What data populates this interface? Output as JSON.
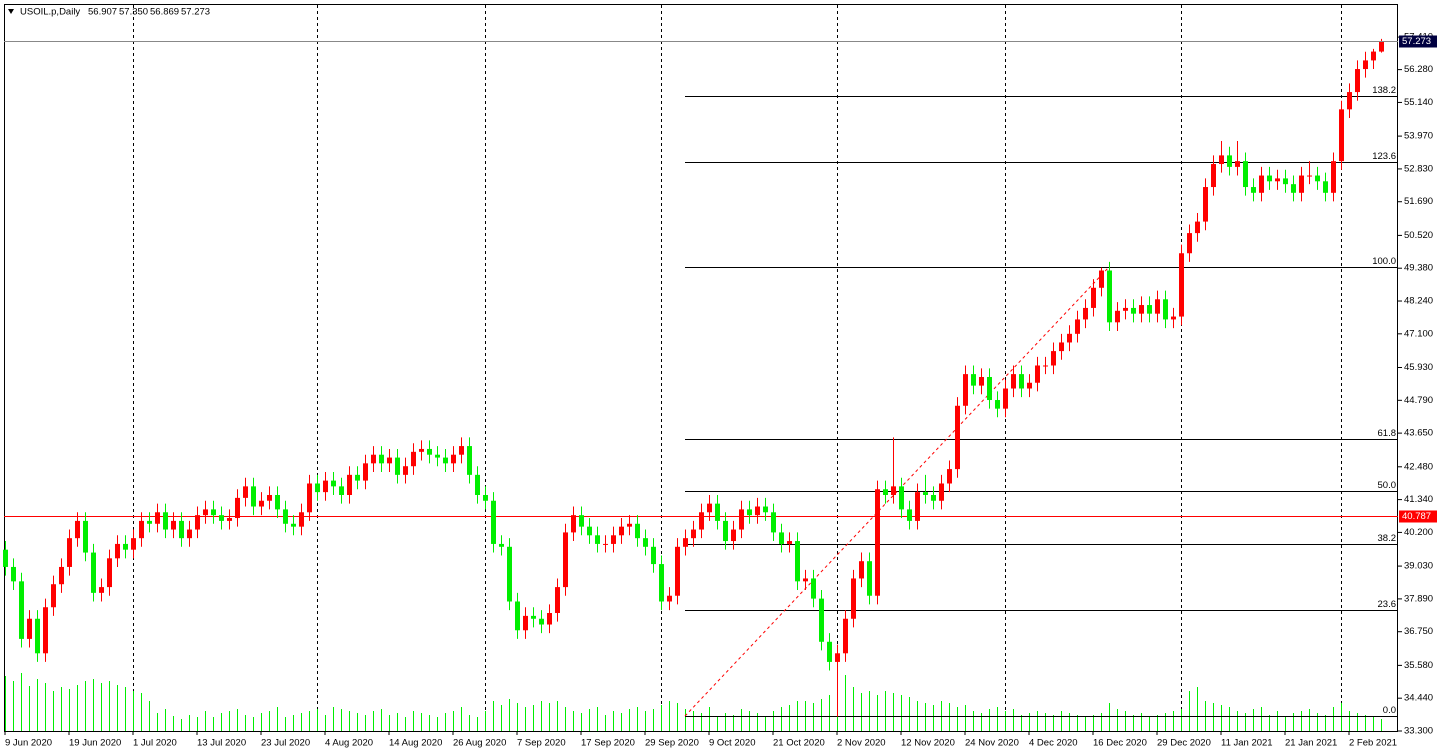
{
  "chart_data": {
    "type": "candlestick",
    "title": "USOIL.p,Daily",
    "ohlc_labels": [
      "56.907",
      "57.350",
      "56.869",
      "57.273"
    ],
    "up_color": "#ff0000",
    "down_color": "#00ee00",
    "volume_color": "#00ee00",
    "ylim": [
      33.3,
      58.56
    ],
    "yticks": [
      {
        "value": 57.41,
        "label": "57.410"
      },
      {
        "value": 56.28,
        "label": "56.280"
      },
      {
        "value": 55.14,
        "label": "55.140"
      },
      {
        "value": 53.97,
        "label": "53.970"
      },
      {
        "value": 52.83,
        "label": "52.830"
      },
      {
        "value": 51.69,
        "label": "51.690"
      },
      {
        "value": 50.52,
        "label": "50.520"
      },
      {
        "value": 49.38,
        "label": "49.380"
      },
      {
        "value": 48.24,
        "label": "48.240"
      },
      {
        "value": 47.1,
        "label": "47.100"
      },
      {
        "value": 45.93,
        "label": "45.930"
      },
      {
        "value": 44.79,
        "label": "44.790"
      },
      {
        "value": 43.65,
        "label": "43.650"
      },
      {
        "value": 42.48,
        "label": "42.480"
      },
      {
        "value": 41.34,
        "label": "41.340"
      },
      {
        "value": 40.2,
        "label": "40.200"
      },
      {
        "value": 39.03,
        "label": "39.030"
      },
      {
        "value": 37.89,
        "label": "37.890"
      },
      {
        "value": 36.75,
        "label": "36.750"
      },
      {
        "value": 35.58,
        "label": "35.580"
      },
      {
        "value": 34.44,
        "label": "34.440"
      },
      {
        "value": 33.3,
        "label": "33.300"
      }
    ],
    "hline": 40.787,
    "fibonacci": [
      {
        "label": "0.0",
        "price": 33.82
      },
      {
        "label": "23.6",
        "price": 37.5
      },
      {
        "label": "38.2",
        "price": 39.79
      },
      {
        "label": "50.0",
        "price": 41.63
      },
      {
        "label": "61.8",
        "price": 43.44
      },
      {
        "label": "100.0",
        "price": 49.42
      },
      {
        "label": "123.6",
        "price": 53.07
      },
      {
        "label": "138.2",
        "price": 55.36
      }
    ],
    "categories": [
      "9 Jun 2020",
      null,
      null,
      null,
      null,
      null,
      null,
      null,
      "19 Jun 2020",
      null,
      null,
      null,
      null,
      null,
      null,
      null,
      "1 Jul 2020",
      null,
      null,
      null,
      null,
      null,
      null,
      null,
      "13 Jul 2020",
      null,
      null,
      null,
      null,
      null,
      null,
      null,
      "23 Jul 2020",
      null,
      null,
      null,
      null,
      null,
      null,
      null,
      "4 Aug 2020",
      null,
      null,
      null,
      null,
      null,
      null,
      null,
      "14 Aug 2020",
      null,
      null,
      null,
      null,
      null,
      null,
      null,
      "26 Aug 2020",
      null,
      null,
      null,
      null,
      null,
      null,
      null,
      "7 Sep 2020",
      null,
      null,
      null,
      null,
      null,
      null,
      null,
      "17 Sep 2020",
      null,
      null,
      null,
      null,
      null,
      null,
      null,
      "29 Sep 2020",
      null,
      null,
      null,
      null,
      null,
      null,
      null,
      "9 Oct 2020",
      null,
      null,
      null,
      null,
      null,
      null,
      null,
      "21 Oct 2020",
      null,
      null,
      null,
      null,
      null,
      null,
      null,
      "2 Nov 2020",
      null,
      null,
      null,
      null,
      null,
      null,
      null,
      "12 Nov 2020",
      null,
      null,
      null,
      null,
      null,
      null,
      null,
      "24 Nov 2020",
      null,
      null,
      null,
      null,
      null,
      null,
      null,
      "4 Dec 2020",
      null,
      null,
      null,
      null,
      null,
      null,
      null,
      "16 Dec 2020",
      null,
      null,
      null,
      null,
      null,
      null,
      null,
      "29 Dec 2020",
      null,
      null,
      null,
      null,
      null,
      null,
      null,
      "11 Jan 2021",
      null,
      null,
      null,
      null,
      null,
      null,
      null,
      "21 Jan 2021",
      null,
      null,
      null,
      null,
      null,
      null,
      null,
      "2 Feb 2021",
      null,
      null,
      null,
      null
    ],
    "candles": [
      [
        39.6,
        39.9,
        38.7,
        39.0
      ],
      [
        39.0,
        39.3,
        38.2,
        38.5
      ],
      [
        38.5,
        38.8,
        36.2,
        36.5
      ],
      [
        36.5,
        37.5,
        36.2,
        37.2
      ],
      [
        37.2,
        37.5,
        35.7,
        36.0
      ],
      [
        36.0,
        37.9,
        35.7,
        37.6
      ],
      [
        37.6,
        38.7,
        37.3,
        38.4
      ],
      [
        38.4,
        39.3,
        38.1,
        39.0
      ],
      [
        39.0,
        40.3,
        38.7,
        40.0
      ],
      [
        40.0,
        40.9,
        39.7,
        40.6
      ],
      [
        40.6,
        40.9,
        39.2,
        39.5
      ],
      [
        39.5,
        39.8,
        37.8,
        38.1
      ],
      [
        38.1,
        38.6,
        37.8,
        38.3
      ],
      [
        38.3,
        39.6,
        38.0,
        39.3
      ],
      [
        39.3,
        40.1,
        39.0,
        39.8
      ],
      [
        39.8,
        40.1,
        39.3,
        39.6
      ],
      [
        39.6,
        40.3,
        39.3,
        40.0
      ],
      [
        40.0,
        40.9,
        39.7,
        40.6
      ],
      [
        40.6,
        40.9,
        40.2,
        40.5
      ],
      [
        40.5,
        41.2,
        40.2,
        40.9
      ],
      [
        40.9,
        41.2,
        40.0,
        40.3
      ],
      [
        40.3,
        40.9,
        40.0,
        40.6
      ],
      [
        40.6,
        40.9,
        39.7,
        40.0
      ],
      [
        40.0,
        40.6,
        39.7,
        40.3
      ],
      [
        40.3,
        41.1,
        40.0,
        40.8
      ],
      [
        40.8,
        41.3,
        40.5,
        41.0
      ],
      [
        41.0,
        41.3,
        40.5,
        40.8
      ],
      [
        40.8,
        41.1,
        40.3,
        40.6
      ],
      [
        40.6,
        41.0,
        40.3,
        40.7
      ],
      [
        40.7,
        41.7,
        40.4,
        41.4
      ],
      [
        41.4,
        42.1,
        41.1,
        41.8
      ],
      [
        41.8,
        42.1,
        40.8,
        41.1
      ],
      [
        41.1,
        41.6,
        40.8,
        41.3
      ],
      [
        41.3,
        41.8,
        41.0,
        41.5
      ],
      [
        41.5,
        41.8,
        40.7,
        41.0
      ],
      [
        41.0,
        41.3,
        40.2,
        40.5
      ],
      [
        40.5,
        40.8,
        40.1,
        40.4
      ],
      [
        40.4,
        41.2,
        40.1,
        40.9
      ],
      [
        40.9,
        42.2,
        40.6,
        41.9
      ],
      [
        41.9,
        42.2,
        41.3,
        41.6
      ],
      [
        41.6,
        42.3,
        41.3,
        42.0
      ],
      [
        42.0,
        42.3,
        41.5,
        41.8
      ],
      [
        41.8,
        42.1,
        41.2,
        41.5
      ],
      [
        41.5,
        42.5,
        41.2,
        42.2
      ],
      [
        42.2,
        42.5,
        41.7,
        42.0
      ],
      [
        42.0,
        42.9,
        41.7,
        42.6
      ],
      [
        42.6,
        43.2,
        42.3,
        42.9
      ],
      [
        42.9,
        43.2,
        42.3,
        42.6
      ],
      [
        42.6,
        43.1,
        42.3,
        42.8
      ],
      [
        42.8,
        43.1,
        41.9,
        42.2
      ],
      [
        42.2,
        42.8,
        41.9,
        42.5
      ],
      [
        42.5,
        43.3,
        42.2,
        43.0
      ],
      [
        43.0,
        43.4,
        42.7,
        43.1
      ],
      [
        43.1,
        43.4,
        42.6,
        42.9
      ],
      [
        42.9,
        43.2,
        42.5,
        42.8
      ],
      [
        42.8,
        43.1,
        42.3,
        42.6
      ],
      [
        42.6,
        43.2,
        42.3,
        42.9
      ],
      [
        42.9,
        43.5,
        42.6,
        43.2
      ],
      [
        43.2,
        43.5,
        41.9,
        42.2
      ],
      [
        42.2,
        42.5,
        41.2,
        41.5
      ],
      [
        41.5,
        41.8,
        41.0,
        41.3
      ],
      [
        41.3,
        41.6,
        39.5,
        39.8
      ],
      [
        39.8,
        40.1,
        39.4,
        39.7
      ],
      [
        39.7,
        40.0,
        37.5,
        37.8
      ],
      [
        37.8,
        38.1,
        36.5,
        36.8
      ],
      [
        36.8,
        37.6,
        36.5,
        37.3
      ],
      [
        37.3,
        37.6,
        36.9,
        37.2
      ],
      [
        37.2,
        37.5,
        36.7,
        37.0
      ],
      [
        37.0,
        37.7,
        36.7,
        37.4
      ],
      [
        37.4,
        38.6,
        37.1,
        38.3
      ],
      [
        38.3,
        40.5,
        38.0,
        40.2
      ],
      [
        40.2,
        41.1,
        39.9,
        40.8
      ],
      [
        40.8,
        41.1,
        40.1,
        40.4
      ],
      [
        40.4,
        40.7,
        39.8,
        40.1
      ],
      [
        40.1,
        40.4,
        39.5,
        39.8
      ],
      [
        39.8,
        40.1,
        39.5,
        39.8
      ],
      [
        39.8,
        40.4,
        39.5,
        40.1
      ],
      [
        40.1,
        40.7,
        39.8,
        40.4
      ],
      [
        40.4,
        40.8,
        40.1,
        40.5
      ],
      [
        40.5,
        40.8,
        39.7,
        40.0
      ],
      [
        40.0,
        40.3,
        39.4,
        39.7
      ],
      [
        39.7,
        40.0,
        38.8,
        39.1
      ],
      [
        39.1,
        39.4,
        37.5,
        37.8
      ],
      [
        37.8,
        38.3,
        37.5,
        38.0
      ],
      [
        38.0,
        40.0,
        37.7,
        39.7
      ],
      [
        39.7,
        40.3,
        39.4,
        40.0
      ],
      [
        40.0,
        40.6,
        39.7,
        40.3
      ],
      [
        40.3,
        41.2,
        40.0,
        40.9
      ],
      [
        40.9,
        41.5,
        40.6,
        41.2
      ],
      [
        41.2,
        41.5,
        40.3,
        40.6
      ],
      [
        40.6,
        40.9,
        39.6,
        39.9
      ],
      [
        39.9,
        40.6,
        39.6,
        40.3
      ],
      [
        40.3,
        41.3,
        40.0,
        41.0
      ],
      [
        41.0,
        41.3,
        40.5,
        40.8
      ],
      [
        40.8,
        41.4,
        40.5,
        41.1
      ],
      [
        41.1,
        41.4,
        40.6,
        40.9
      ],
      [
        40.9,
        41.2,
        39.9,
        40.2
      ],
      [
        40.2,
        40.5,
        39.5,
        39.8
      ],
      [
        39.8,
        40.2,
        39.5,
        39.9
      ],
      [
        39.9,
        40.2,
        38.2,
        38.5
      ],
      [
        38.5,
        38.9,
        38.2,
        38.6
      ],
      [
        38.6,
        38.9,
        37.6,
        37.9
      ],
      [
        37.9,
        38.2,
        36.1,
        36.4
      ],
      [
        36.4,
        36.7,
        35.4,
        35.7
      ],
      [
        35.7,
        36.3,
        33.8,
        36.0
      ],
      [
        36.0,
        37.5,
        35.7,
        37.2
      ],
      [
        37.2,
        38.9,
        36.9,
        38.6
      ],
      [
        38.6,
        39.5,
        38.3,
        39.2
      ],
      [
        39.2,
        39.5,
        37.7,
        38.0
      ],
      [
        38.0,
        42.0,
        37.7,
        41.7
      ],
      [
        41.7,
        42.0,
        41.2,
        41.5
      ],
      [
        41.5,
        43.5,
        41.2,
        41.8
      ],
      [
        41.8,
        42.1,
        40.7,
        41.0
      ],
      [
        41.0,
        41.3,
        40.3,
        40.6
      ],
      [
        40.6,
        41.9,
        40.3,
        41.6
      ],
      [
        41.6,
        42.2,
        41.2,
        41.5
      ],
      [
        41.5,
        41.8,
        41.0,
        41.3
      ],
      [
        41.3,
        42.2,
        41.0,
        41.9
      ],
      [
        41.9,
        42.7,
        41.6,
        42.4
      ],
      [
        42.4,
        44.9,
        42.1,
        44.6
      ],
      [
        44.6,
        46.0,
        44.3,
        45.7
      ],
      [
        45.7,
        46.0,
        45.0,
        45.3
      ],
      [
        45.3,
        45.9,
        45.0,
        45.6
      ],
      [
        45.6,
        45.9,
        44.5,
        44.8
      ],
      [
        44.8,
        45.1,
        44.2,
        44.5
      ],
      [
        44.5,
        45.5,
        44.2,
        45.2
      ],
      [
        45.2,
        46.0,
        44.9,
        45.7
      ],
      [
        45.7,
        46.0,
        44.9,
        45.2
      ],
      [
        45.2,
        45.7,
        44.9,
        45.4
      ],
      [
        45.4,
        46.3,
        45.1,
        46.0
      ],
      [
        46.0,
        46.3,
        45.7,
        46.0
      ],
      [
        46.0,
        46.8,
        45.7,
        46.5
      ],
      [
        46.5,
        47.1,
        46.2,
        46.8
      ],
      [
        46.8,
        47.4,
        46.5,
        47.1
      ],
      [
        47.1,
        47.9,
        46.8,
        47.6
      ],
      [
        47.6,
        48.3,
        47.3,
        48.0
      ],
      [
        48.0,
        49.0,
        47.7,
        48.7
      ],
      [
        48.7,
        49.4,
        48.4,
        49.3
      ],
      [
        49.3,
        49.6,
        47.2,
        47.5
      ],
      [
        47.5,
        48.2,
        47.2,
        47.9
      ],
      [
        47.9,
        48.3,
        47.6,
        48.0
      ],
      [
        48.0,
        48.3,
        47.5,
        47.8
      ],
      [
        47.8,
        48.4,
        47.5,
        48.1
      ],
      [
        48.1,
        48.4,
        47.5,
        47.8
      ],
      [
        47.8,
        48.6,
        47.5,
        48.3
      ],
      [
        48.3,
        48.6,
        47.3,
        47.6
      ],
      [
        47.6,
        48.0,
        47.3,
        47.7
      ],
      [
        47.7,
        50.2,
        47.4,
        49.9
      ],
      [
        49.9,
        50.9,
        49.6,
        50.6
      ],
      [
        50.6,
        51.3,
        50.3,
        51.0
      ],
      [
        51.0,
        52.5,
        50.7,
        52.2
      ],
      [
        52.2,
        53.3,
        51.9,
        53.0
      ],
      [
        53.0,
        53.8,
        52.7,
        53.3
      ],
      [
        53.3,
        53.6,
        52.6,
        52.9
      ],
      [
        52.9,
        53.8,
        52.6,
        53.1
      ],
      [
        53.1,
        53.4,
        51.9,
        52.2
      ],
      [
        52.2,
        52.5,
        51.7,
        52.0
      ],
      [
        52.0,
        52.9,
        51.7,
        52.6
      ],
      [
        52.6,
        52.9,
        52.1,
        52.4
      ],
      [
        52.4,
        52.8,
        52.1,
        52.5
      ],
      [
        52.5,
        52.8,
        52.0,
        52.3
      ],
      [
        52.3,
        52.6,
        51.7,
        52.0
      ],
      [
        52.0,
        52.9,
        51.7,
        52.6
      ],
      [
        52.6,
        53.1,
        52.3,
        52.6
      ],
      [
        52.6,
        52.9,
        52.1,
        52.4
      ],
      [
        52.4,
        52.7,
        51.7,
        52.0
      ],
      [
        52.0,
        53.4,
        51.7,
        53.1
      ],
      [
        53.1,
        55.2,
        52.8,
        54.9
      ],
      [
        54.9,
        55.8,
        54.6,
        55.5
      ],
      [
        55.5,
        56.6,
        55.2,
        56.3
      ],
      [
        56.3,
        56.9,
        56.0,
        56.6
      ],
      [
        56.6,
        57.0,
        56.3,
        56.907
      ],
      [
        56.907,
        57.35,
        56.869,
        57.273
      ]
    ],
    "volumes": [
      55,
      50,
      58,
      45,
      52,
      48,
      40,
      44,
      42,
      46,
      50,
      52,
      48,
      50,
      46,
      44,
      40,
      38,
      30,
      18,
      22,
      15,
      12,
      16,
      14,
      20,
      14,
      18,
      20,
      22,
      16,
      14,
      18,
      20,
      24,
      14,
      16,
      18,
      20,
      22,
      16,
      24,
      22,
      20,
      18,
      16,
      20,
      22,
      16,
      18,
      14,
      20,
      18,
      16,
      14,
      18,
      20,
      24,
      16,
      14,
      20,
      30,
      26,
      32,
      28,
      24,
      26,
      30,
      28,
      30,
      24,
      20,
      18,
      22,
      24,
      16,
      20,
      18,
      22,
      24,
      20,
      22,
      26,
      30,
      28,
      22,
      20,
      18,
      24,
      14,
      18,
      16,
      22,
      20,
      18,
      14,
      20,
      24,
      26,
      30,
      30,
      28,
      32,
      36,
      40,
      56,
      44,
      38,
      40,
      36,
      40,
      38,
      36,
      34,
      30,
      28,
      26,
      30,
      28,
      24,
      26,
      20,
      18,
      22,
      24,
      20,
      22,
      16,
      18,
      20,
      18,
      16,
      20,
      18,
      16,
      14,
      16,
      18,
      28,
      22,
      20,
      16,
      18,
      14,
      16,
      18,
      20,
      22,
      40,
      44,
      30,
      28,
      26,
      24,
      20,
      18,
      22,
      24,
      16,
      20,
      14,
      18,
      20,
      22,
      18,
      16,
      24,
      28,
      20,
      18,
      16,
      14,
      12
    ]
  }
}
